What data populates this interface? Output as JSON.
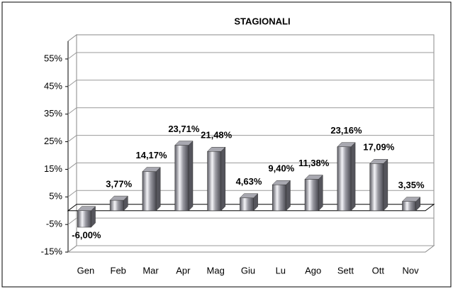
{
  "chart_data": {
    "type": "bar3d",
    "title": "STAGIONALI",
    "categories": [
      "Gen",
      "Feb",
      "Mar",
      "Apr",
      "Mag",
      "Giu",
      "Lu",
      "Ago",
      "Sett",
      "Ott",
      "Nov"
    ],
    "values": [
      -6.0,
      3.77,
      14.17,
      23.71,
      21.48,
      4.63,
      9.4,
      11.38,
      23.16,
      17.09,
      3.35
    ],
    "value_labels": [
      "-6,00%",
      "3,77%",
      "14,17%",
      "23,71%",
      "21,48%",
      "4,63%",
      "9,40%",
      "11,38%",
      "23,16%",
      "17,09%",
      "3,35%"
    ],
    "color": "#a8a8b0",
    "ylim": [
      -15,
      55
    ],
    "yticks": [
      {
        "value": -15,
        "label": "-15%"
      },
      {
        "value": -5,
        "label": "-5%"
      },
      {
        "value": 5,
        "label": "5%"
      },
      {
        "value": 15,
        "label": "15%"
      },
      {
        "value": 25,
        "label": "25%"
      },
      {
        "value": 35,
        "label": "35%"
      },
      {
        "value": 45,
        "label": "45%"
      },
      {
        "value": 55,
        "label": "55%"
      }
    ],
    "grid": true
  }
}
